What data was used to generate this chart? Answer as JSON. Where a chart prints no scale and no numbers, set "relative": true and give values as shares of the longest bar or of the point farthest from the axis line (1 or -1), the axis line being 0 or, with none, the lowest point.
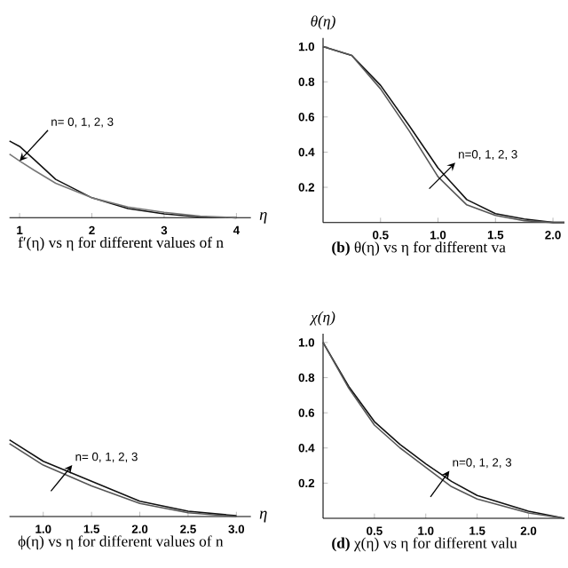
{
  "chart_data": [
    {
      "type": "line",
      "title": "f′(η) vs η for different values of n",
      "xlabel": "η",
      "relative": true,
      "tick_labels": "x",
      "x": [
        0.86,
        1.0,
        1.2,
        1.5,
        2.0,
        2.5,
        3.0,
        3.5,
        4.0
      ],
      "series": [
        {
          "color": "#111111",
          "values": [
            1.0,
            0.93,
            0.76,
            0.5,
            0.26,
            0.12,
            0.05,
            0.01,
            0.0
          ]
        },
        {
          "color": "#777777",
          "values": [
            0.83,
            0.74,
            0.62,
            0.45,
            0.26,
            0.14,
            0.07,
            0.02,
            0.0
          ]
        }
      ],
      "xlim": [
        0.86,
        4.2
      ],
      "xticks": [
        1,
        2,
        3,
        4
      ],
      "annotations": [
        {
          "text": "n= 0, 1, 2, 3",
          "x": 1.0,
          "y": 0.74
        }
      ]
    },
    {
      "type": "line",
      "title": "**(b)** θ(η) vs η for different va",
      "ylabel": "θ(η)",
      "x": [
        0.0,
        0.25,
        0.5,
        0.75,
        1.0,
        1.25,
        1.5,
        1.75,
        2.0,
        2.1
      ],
      "series": [
        {
          "color": "#111111",
          "values": [
            1.0,
            0.95,
            0.78,
            0.55,
            0.31,
            0.13,
            0.05,
            0.02,
            0.0,
            0.0
          ]
        },
        {
          "color": "#555555",
          "values": [
            1.0,
            0.95,
            0.76,
            0.52,
            0.26,
            0.1,
            0.04,
            0.01,
            0.0,
            0.0
          ]
        }
      ],
      "xlim": [
        0,
        2.1
      ],
      "xticks": [
        {
          "value": 0.5,
          "label": "0.5"
        },
        {
          "value": 1.0,
          "label": "1.0"
        },
        {
          "value": 1.5,
          "label": "1.5"
        },
        {
          "value": 2.0,
          "label": "2.0"
        }
      ],
      "ylim": [
        0,
        1.05
      ],
      "yticks": [
        {
          "value": 0.2,
          "label": "0.2"
        },
        {
          "value": 0.4,
          "label": "0.4"
        },
        {
          "value": 0.6,
          "label": "0.6"
        },
        {
          "value": 0.8,
          "label": "0.8"
        },
        {
          "value": 1.0,
          "label": "1.0"
        }
      ],
      "annotations": [
        {
          "text": "n=0, 1, 2, 3",
          "x": 1.15,
          "y": 0.34
        }
      ]
    },
    {
      "type": "line",
      "title": "ϕ(η) vs η for different values of n",
      "xlabel": "η",
      "relative": true,
      "tick_labels": "x",
      "x": [
        0.65,
        1.0,
        1.5,
        2.0,
        2.5,
        3.0
      ],
      "series": [
        {
          "color": "#111111",
          "values": [
            1.0,
            0.72,
            0.46,
            0.2,
            0.07,
            0.01
          ]
        },
        {
          "color": "#555555",
          "values": [
            0.95,
            0.67,
            0.4,
            0.17,
            0.05,
            0.0
          ]
        }
      ],
      "xlim": [
        0.65,
        3.15
      ],
      "xticks": [
        {
          "value": 1.0,
          "label": "1.0"
        },
        {
          "value": 1.5,
          "label": "1.5"
        },
        {
          "value": 2.0,
          "label": "2.0"
        },
        {
          "value": 2.5,
          "label": "2.5"
        },
        {
          "value": 3.0,
          "label": "3.0"
        }
      ],
      "annotations": [
        {
          "text": "n= 0, 1, 2, 3",
          "x": 1.3,
          "y": 0.67
        }
      ]
    },
    {
      "type": "line",
      "title": "**(d)** χ(η) vs η for different valu",
      "ylabel": "χ(η)",
      "x": [
        0.0,
        0.25,
        0.5,
        0.75,
        1.0,
        1.25,
        1.5,
        2.0,
        2.35
      ],
      "series": [
        {
          "color": "#111111",
          "values": [
            1.0,
            0.75,
            0.55,
            0.42,
            0.31,
            0.21,
            0.13,
            0.04,
            0.0
          ]
        },
        {
          "color": "#555555",
          "values": [
            1.0,
            0.74,
            0.53,
            0.4,
            0.29,
            0.18,
            0.11,
            0.03,
            0.0
          ]
        }
      ],
      "xlim": [
        0,
        2.35
      ],
      "xticks": [
        {
          "value": 0.5,
          "label": "0.5"
        },
        {
          "value": 1.0,
          "label": "1.0"
        },
        {
          "value": 1.5,
          "label": "1.5"
        },
        {
          "value": 2.0,
          "label": "2.0"
        }
      ],
      "ylim": [
        0,
        1.05
      ],
      "yticks": [
        {
          "value": 0.2,
          "label": "0.2"
        },
        {
          "value": 0.4,
          "label": "0.4"
        },
        {
          "value": 0.6,
          "label": "0.6"
        },
        {
          "value": 0.8,
          "label": "0.8"
        },
        {
          "value": 1.0,
          "label": "1.0"
        }
      ],
      "annotations": [
        {
          "text": "n=0, 1, 2, 3",
          "x": 1.23,
          "y": 0.27
        }
      ]
    }
  ]
}
